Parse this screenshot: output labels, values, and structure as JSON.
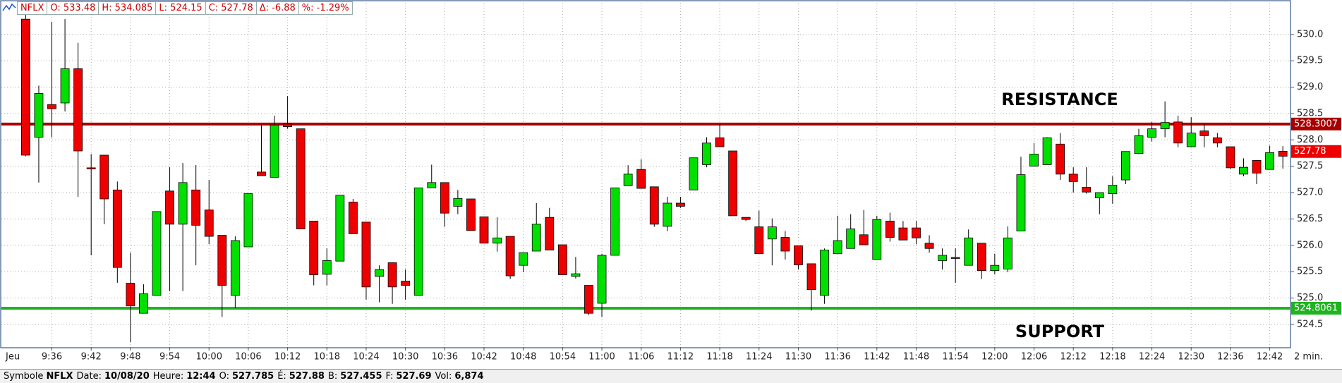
{
  "header": {
    "fields": [
      "NFLX",
      "O: 533.48",
      "H: 534.085",
      "L: 524.15",
      "C: 527.78",
      "Δ: -6.88",
      "%: -1.29%"
    ]
  },
  "footer": {
    "fields": [
      {
        "label": "Symbole",
        "value": "NFLX"
      },
      {
        "label": "Date:",
        "value": "10/08/20"
      },
      {
        "label": "Heure:",
        "value": "12:44"
      },
      {
        "label": "O:",
        "value": "527.785"
      },
      {
        "label": "É:",
        "value": "527.88"
      },
      {
        "label": "B:",
        "value": "527.455"
      },
      {
        "label": "F:",
        "value": "527.69"
      },
      {
        "label": "Vol:",
        "value": "6,874"
      }
    ]
  },
  "chart_data": {
    "type": "candlestick",
    "day_label": "Jeu",
    "interval_label": "2 min.",
    "categories": [
      null,
      null,
      "9:36",
      null,
      null,
      "9:42",
      null,
      null,
      "9:48",
      null,
      null,
      "9:54",
      null,
      null,
      "10:00",
      null,
      null,
      "10:06",
      null,
      null,
      "10:12",
      null,
      null,
      "10:18",
      null,
      null,
      "10:24",
      null,
      null,
      "10:30",
      null,
      null,
      "10:36",
      null,
      null,
      "10:42",
      null,
      null,
      "10:48",
      null,
      null,
      "10:54",
      null,
      null,
      "11:00",
      null,
      null,
      "11:06",
      null,
      null,
      "11:12",
      null,
      null,
      "11:18",
      null,
      null,
      "11:24",
      null,
      null,
      "11:30",
      null,
      null,
      "11:36",
      null,
      null,
      "11:42",
      null,
      null,
      "11:48",
      null,
      null,
      "11:54",
      null,
      null,
      "12:00",
      null,
      null,
      "12:06",
      null,
      null,
      "12:12",
      null,
      null,
      "12:18",
      null,
      null,
      "12:24",
      null,
      null,
      "12:30",
      null,
      null,
      "12:36",
      null,
      null,
      "12:42",
      null,
      null
    ],
    "open": [
      530.29,
      528.05,
      528.67,
      528.7,
      529.35,
      527.47,
      527.71,
      527.05,
      525.28,
      524.71,
      525.05,
      527.03,
      526.4,
      527.05,
      526.67,
      526.19,
      525.05,
      525.97,
      527.39,
      527.29,
      528.3,
      528.21,
      526.46,
      525.45,
      525.7,
      526.82,
      526.44,
      525.41,
      525.67,
      525.32,
      525.05,
      527.09,
      527.19,
      526.74,
      526.88,
      526.54,
      526.04,
      526.17,
      525.62,
      525.89,
      526.53,
      526.01,
      525.41,
      525.24,
      524.9,
      525.81,
      527.13,
      527.44,
      527.11,
      526.36,
      526.8,
      527.05,
      527.53,
      528.04,
      527.79,
      526.53,
      526.35,
      526.12,
      526.15,
      525.99,
      525.65,
      525.05,
      525.84,
      525.94,
      526.2,
      525.73,
      526.46,
      526.33,
      526.33,
      526.04,
      525.71,
      525.77,
      525.62,
      526.04,
      525.52,
      525.55,
      526.27,
      527.5,
      527.53,
      527.92,
      527.35,
      527.1,
      526.9,
      526.98,
      527.24,
      527.74,
      528.05,
      528.21,
      528.34,
      527.87,
      528.17,
      528.04,
      527.87,
      527.35,
      527.61,
      527.44,
      527.785,
      527.78
    ],
    "high": [
      530.5,
      529.03,
      530.24,
      530.29,
      529.84,
      527.73,
      527.71,
      527.21,
      525.86,
      525.26,
      526.64,
      527.48,
      527.56,
      527.52,
      527.24,
      526.19,
      526.17,
      526.98,
      528.3,
      528.46,
      528.83,
      528.21,
      526.46,
      525.94,
      526.95,
      526.88,
      526.44,
      525.62,
      525.67,
      525.54,
      527.09,
      527.53,
      527.19,
      527.05,
      526.88,
      526.54,
      526.53,
      526.17,
      525.86,
      526.8,
      526.71,
      526.01,
      525.78,
      525.24,
      525.84,
      527.09,
      527.52,
      527.63,
      527.11,
      526.92,
      526.92,
      527.66,
      528.05,
      528.3,
      527.79,
      526.53,
      526.66,
      526.51,
      526.27,
      525.99,
      525.65,
      525.94,
      526.56,
      526.59,
      526.67,
      526.56,
      526.62,
      526.46,
      526.46,
      526.19,
      525.94,
      525.94,
      526.3,
      526.04,
      525.84,
      526.36,
      527.68,
      527.94,
      528.05,
      528.13,
      527.48,
      527.48,
      527.0,
      527.31,
      527.78,
      528.21,
      528.34,
      528.73,
      528.46,
      528.43,
      528.3,
      528.13,
      527.87,
      527.65,
      527.61,
      527.89,
      527.88,
      527.82
    ],
    "low": [
      527.69,
      527.19,
      528.05,
      528.54,
      526.92,
      525.81,
      526.4,
      525.29,
      524.16,
      524.71,
      525.05,
      525.13,
      525.13,
      525.62,
      526.02,
      524.64,
      524.81,
      525.97,
      527.32,
      527.29,
      528.21,
      526.31,
      525.24,
      525.24,
      525.7,
      526.22,
      524.97,
      524.92,
      524.89,
      524.97,
      525.05,
      527.09,
      526.35,
      526.59,
      526.28,
      526.04,
      525.88,
      525.36,
      525.49,
      525.89,
      525.91,
      525.44,
      525.37,
      524.68,
      524.64,
      525.81,
      527.13,
      527.08,
      526.35,
      526.27,
      526.71,
      527.05,
      527.48,
      527.87,
      526.56,
      526.46,
      525.84,
      525.62,
      525.73,
      525.54,
      524.76,
      524.89,
      525.84,
      525.94,
      526.01,
      525.73,
      526.07,
      526.1,
      526.02,
      525.86,
      525.54,
      525.29,
      525.62,
      525.36,
      525.45,
      525.49,
      526.27,
      527.5,
      527.53,
      527.24,
      527.0,
      526.98,
      526.59,
      526.79,
      527.16,
      527.73,
      527.97,
      528.05,
      527.86,
      527.86,
      527.86,
      527.86,
      527.45,
      527.31,
      527.16,
      527.44,
      527.455,
      527.78
    ],
    "close": [
      527.71,
      528.88,
      528.59,
      529.35,
      527.79,
      527.45,
      526.88,
      525.58,
      524.85,
      525.08,
      526.64,
      526.4,
      527.19,
      526.38,
      526.17,
      525.24,
      526.09,
      526.98,
      527.32,
      528.28,
      528.25,
      526.31,
      525.44,
      525.71,
      526.95,
      526.22,
      525.21,
      525.54,
      525.21,
      525.24,
      527.09,
      527.19,
      526.61,
      526.89,
      526.28,
      526.04,
      526.14,
      525.42,
      525.86,
      526.4,
      525.91,
      525.44,
      525.46,
      524.71,
      525.81,
      527.09,
      527.35,
      527.08,
      526.4,
      526.8,
      526.74,
      527.66,
      527.94,
      527.87,
      526.56,
      526.49,
      525.84,
      526.35,
      525.89,
      525.63,
      525.16,
      525.91,
      526.09,
      526.31,
      526.01,
      526.49,
      526.15,
      526.1,
      526.14,
      525.94,
      525.81,
      525.76,
      526.14,
      525.52,
      525.62,
      526.14,
      527.34,
      527.73,
      528.04,
      527.35,
      527.21,
      527.01,
      527.0,
      527.14,
      527.78,
      528.08,
      528.21,
      528.33,
      527.94,
      528.13,
      528.08,
      527.94,
      527.47,
      527.48,
      527.37,
      527.76,
      527.69,
      527.78
    ],
    "up_color": "#00e000",
    "down_color": "#ee0000",
    "ylim": [
      524.07,
      530.6
    ],
    "yticks": [
      524.5,
      {
        "value": 525,
        "label": "525.0"
      },
      525.5,
      {
        "value": 526,
        "label": "526.0"
      },
      526.5,
      {
        "value": 527,
        "label": "527.0"
      },
      527.5,
      {
        "value": 528,
        "label": "528.0"
      },
      528.5,
      {
        "value": 529,
        "label": "529.0"
      },
      529.5,
      {
        "value": 530,
        "label": "530.0"
      }
    ],
    "grid": true,
    "hlines": [
      {
        "value": 528.3007,
        "color": "#a80000",
        "annotation": "RESISTANCE"
      },
      {
        "value": 524.8061,
        "color": "#1eb41e",
        "annotation": "SUPPORT"
      }
    ],
    "last_price": 527.78,
    "last_price_color": "#ee0000"
  }
}
